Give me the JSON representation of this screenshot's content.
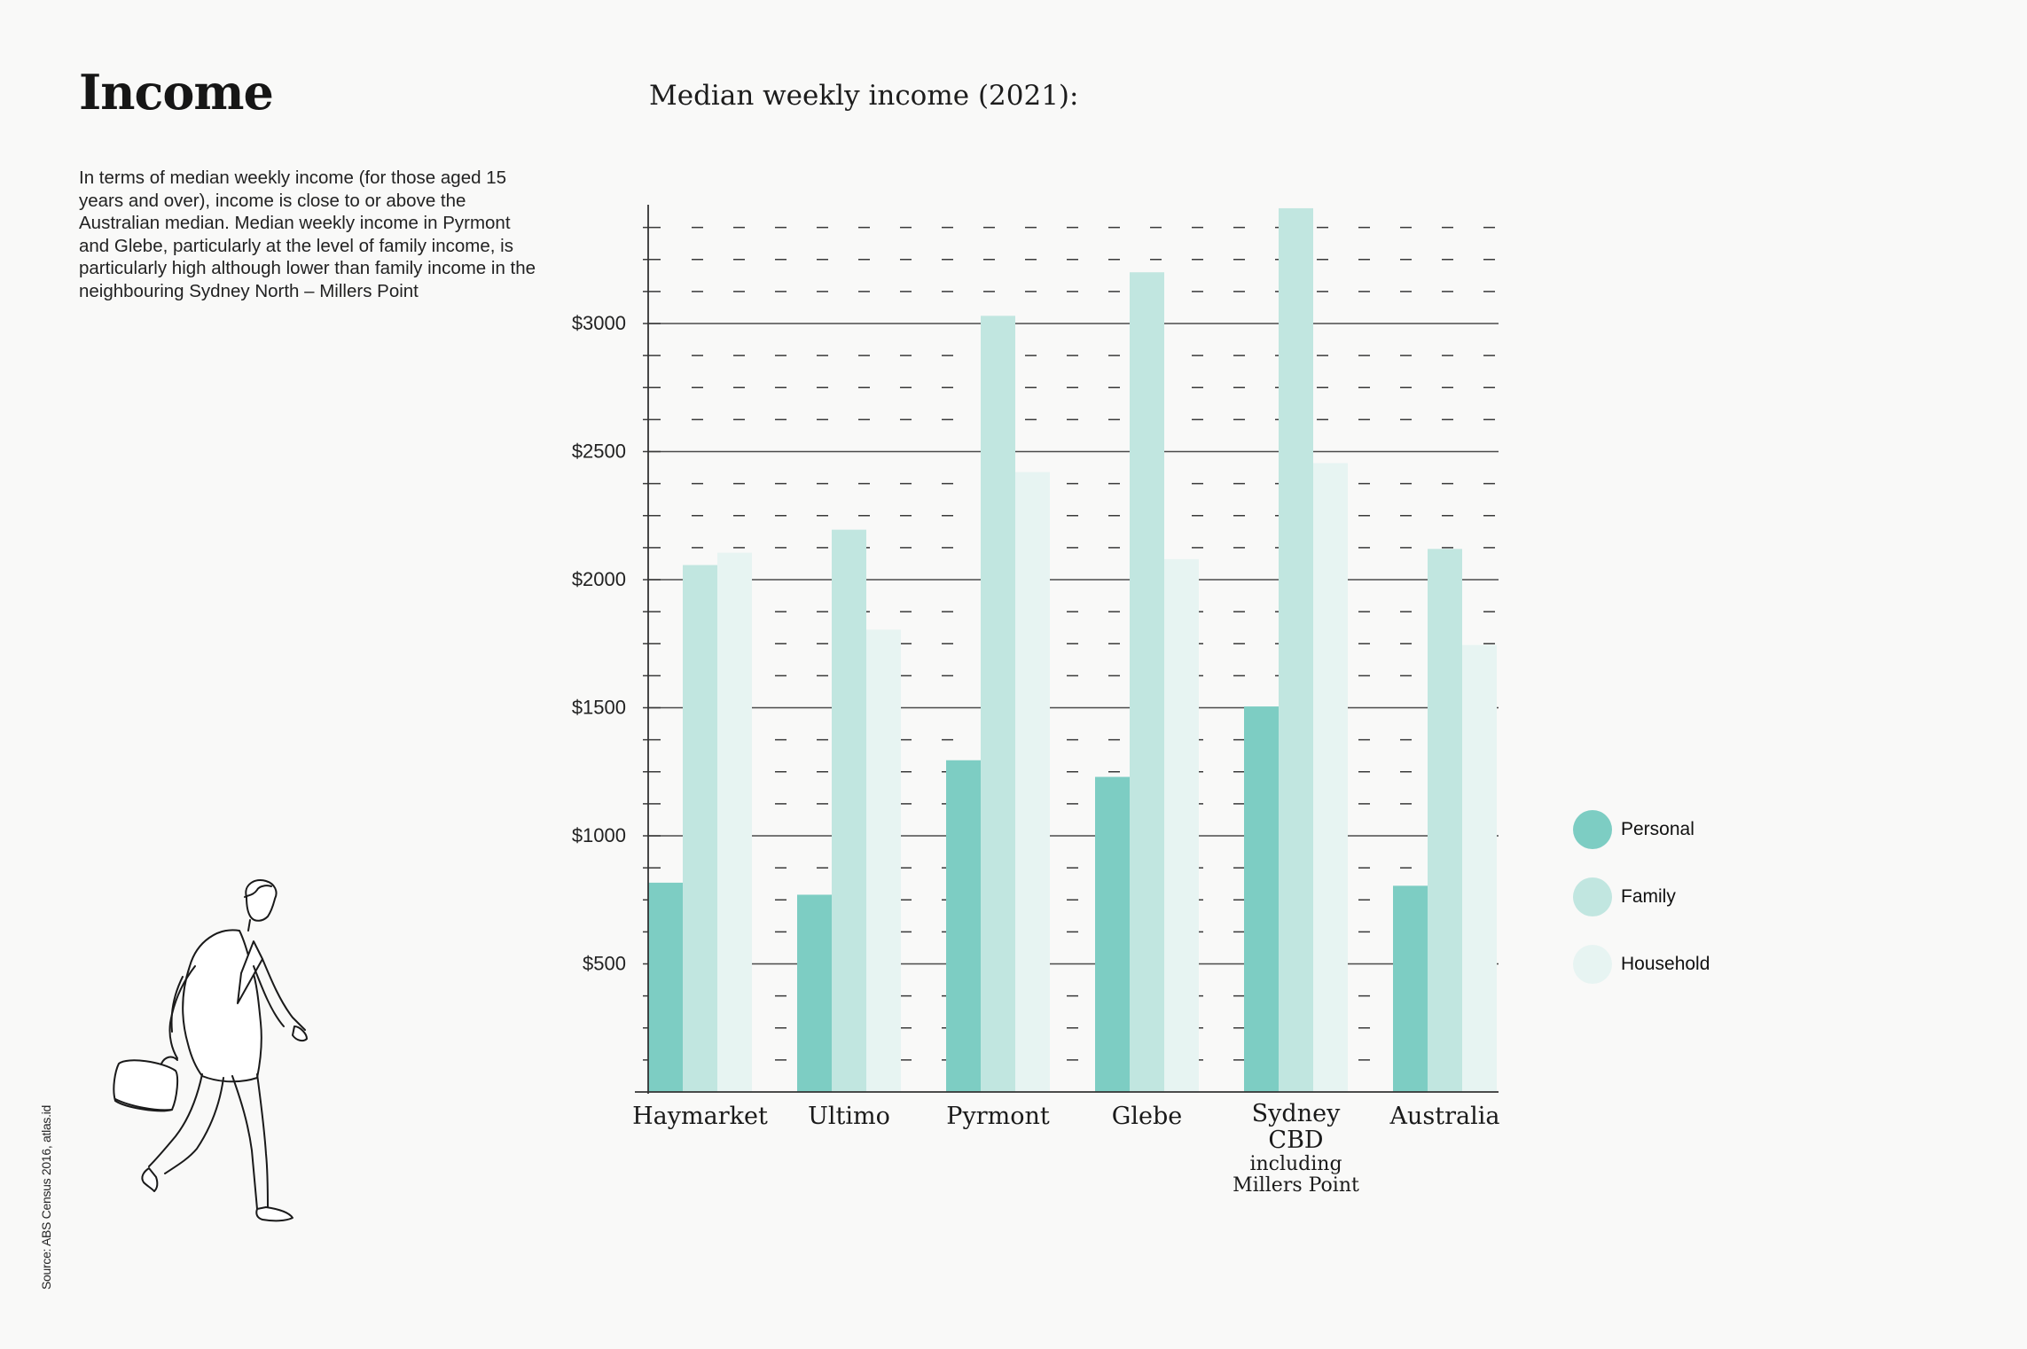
{
  "header": {
    "title": "Income",
    "intro": "In terms of median weekly income (for those aged 15 years and over), income is close to or above the Australian median. Median weekly income in Pyrmont and Glebe, particularly at the level of family income, is particularly high although lower than family income in the neighbouring Sydney North – Millers Point"
  },
  "source_note": "Source: ABS Census 2016, atlas.id",
  "chart_data": {
    "type": "bar",
    "title": "Median weekly income (2021):",
    "xlabel": "",
    "ylabel": "",
    "ylim": [
      0,
      3450
    ],
    "grid": true,
    "legend_position": "right",
    "y_ticks": [
      {
        "value": 500,
        "label": "$500"
      },
      {
        "value": 1000,
        "label": "$1000"
      },
      {
        "value": 1500,
        "label": "$1500"
      },
      {
        "value": 2000,
        "label": "$2000"
      },
      {
        "value": 2500,
        "label": "$2500"
      },
      {
        "value": 3000,
        "label": "$3000"
      }
    ],
    "categories": [
      {
        "name": "Haymarket",
        "lines": [
          "Haymarket"
        ]
      },
      {
        "name": "Ultimo",
        "lines": [
          "Ultimo"
        ]
      },
      {
        "name": "Pyrmont",
        "lines": [
          "Pyrmont"
        ]
      },
      {
        "name": "Glebe",
        "lines": [
          "Glebe"
        ]
      },
      {
        "name": "Sydney CBD including Millers Point",
        "lines": [
          "Sydney",
          "CBD",
          "including",
          "Millers Point"
        ]
      },
      {
        "name": "Australia",
        "lines": [
          "Australia"
        ]
      }
    ],
    "series": [
      {
        "name": "Personal",
        "color": "#7dcdc3",
        "values": [
          817,
          770,
          1295,
          1230,
          1505,
          805
        ]
      },
      {
        "name": "Family",
        "color": "#c1e6e0",
        "values": [
          2057,
          2195,
          3030,
          3200,
          3450,
          2120
        ]
      },
      {
        "name": "Household",
        "color": "#e7f4f2",
        "values": [
          2105,
          1805,
          2420,
          2080,
          2455,
          1745
        ]
      }
    ]
  }
}
